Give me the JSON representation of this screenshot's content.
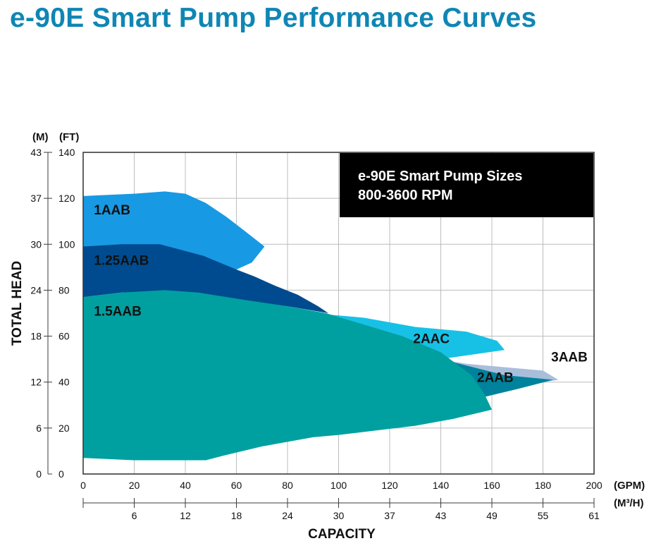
{
  "title": "e-90E Smart Pump Performance Curves",
  "chart_data": {
    "type": "area",
    "title": "e-90E Smart Pump Performance Curves",
    "annotation": {
      "lines": [
        "e-90E Smart Pump Sizes",
        "800-3600 RPM"
      ]
    },
    "xlabel": "CAPACITY",
    "ylabel": "TOTAL HEAD",
    "x_unit": "(GPM)",
    "x2_unit": "(M³/H)",
    "y_unit_left": "(M)",
    "y_unit_right": "(FT)",
    "xlim": [
      0,
      200
    ],
    "ylim": [
      0,
      140
    ],
    "grid": true,
    "x_ticks": [
      0,
      20,
      40,
      60,
      80,
      100,
      120,
      140,
      160,
      180,
      200
    ],
    "x2_ticks": [
      {
        "label": "6",
        "x": 20
      },
      {
        "label": "12",
        "x": 40
      },
      {
        "label": "18",
        "x": 60
      },
      {
        "label": "24",
        "x": 80
      },
      {
        "label": "30",
        "x": 100
      },
      {
        "label": "37",
        "x": 120
      },
      {
        "label": "43",
        "x": 140
      },
      {
        "label": "49",
        "x": 160
      },
      {
        "label": "55",
        "x": 180
      },
      {
        "label": "61",
        "x": 200
      }
    ],
    "y_ticks": [
      0,
      20,
      40,
      60,
      80,
      100,
      120,
      140
    ],
    "y2_ticks": [
      {
        "label": "6",
        "y": 20
      },
      {
        "label": "12",
        "y": 40
      },
      {
        "label": "18",
        "y": 60
      },
      {
        "label": "24",
        "y": 80
      },
      {
        "label": "30",
        "y": 100
      },
      {
        "label": "37",
        "y": 120
      },
      {
        "label": "43",
        "y": 140
      }
    ],
    "series": [
      {
        "name": "3AAB",
        "color": "#a9bedb",
        "label_at": [
          181,
          49
        ],
        "points": [
          [
            128,
            52
          ],
          [
            150,
            48
          ],
          [
            180,
            45
          ],
          [
            186,
            41
          ],
          [
            162,
            37
          ],
          [
            140,
            44
          ]
        ]
      },
      {
        "name": "2AAC",
        "color": "#17c1e6",
        "label_at": [
          127,
          57
        ],
        "points": [
          [
            70,
            73
          ],
          [
            90,
            70
          ],
          [
            110,
            68
          ],
          [
            130,
            64
          ],
          [
            150,
            62
          ],
          [
            162,
            58
          ],
          [
            165,
            54
          ],
          [
            140,
            50
          ],
          [
            120,
            57
          ],
          [
            90,
            69
          ]
        ]
      },
      {
        "name": "2AAB",
        "color": "#00829c",
        "label_at": [
          152,
          40
        ],
        "points": [
          [
            120,
            57
          ],
          [
            140,
            50
          ],
          [
            165,
            43
          ],
          [
            184,
            41
          ],
          [
            170,
            37
          ],
          [
            155,
            33
          ],
          [
            145,
            32
          ],
          [
            130,
            45
          ]
        ]
      },
      {
        "name": "1AAB",
        "color": "#1899e3",
        "label_at": [
          2,
          113
        ],
        "points": [
          [
            0,
            121
          ],
          [
            20,
            122
          ],
          [
            32,
            123
          ],
          [
            40,
            122
          ],
          [
            48,
            118
          ],
          [
            56,
            112
          ],
          [
            63,
            106
          ],
          [
            71,
            99
          ],
          [
            66,
            92
          ],
          [
            60,
            89
          ],
          [
            45,
            94
          ],
          [
            30,
            96
          ],
          [
            15,
            95
          ],
          [
            0,
            95
          ]
        ]
      },
      {
        "name": "1.25AAB",
        "color": "#004b8f",
        "label_at": [
          2,
          91
        ],
        "points": [
          [
            0,
            99
          ],
          [
            15,
            100
          ],
          [
            30,
            100
          ],
          [
            47,
            95
          ],
          [
            60,
            89
          ],
          [
            67,
            86
          ],
          [
            75,
            82
          ],
          [
            84,
            78
          ],
          [
            92,
            73
          ],
          [
            96,
            70
          ],
          [
            80,
            73
          ],
          [
            60,
            76
          ],
          [
            45,
            78
          ],
          [
            30,
            79
          ],
          [
            15,
            79
          ],
          [
            0,
            77
          ]
        ]
      },
      {
        "name": "1.5AAB",
        "color": "#00a0a0",
        "label_at": [
          2,
          69
        ],
        "points": [
          [
            0,
            77
          ],
          [
            15,
            79
          ],
          [
            32,
            80
          ],
          [
            45,
            79
          ],
          [
            62,
            76
          ],
          [
            80,
            73
          ],
          [
            95,
            70
          ],
          [
            110,
            65
          ],
          [
            125,
            60
          ],
          [
            140,
            53
          ],
          [
            152,
            43
          ],
          [
            157,
            35
          ],
          [
            160,
            28
          ],
          [
            145,
            24
          ],
          [
            130,
            21
          ],
          [
            115,
            19
          ],
          [
            100,
            17
          ],
          [
            90,
            16
          ],
          [
            80,
            14
          ],
          [
            70,
            12
          ],
          [
            55,
            8
          ],
          [
            48,
            6
          ],
          [
            20,
            6
          ],
          [
            0,
            7
          ]
        ]
      }
    ]
  }
}
